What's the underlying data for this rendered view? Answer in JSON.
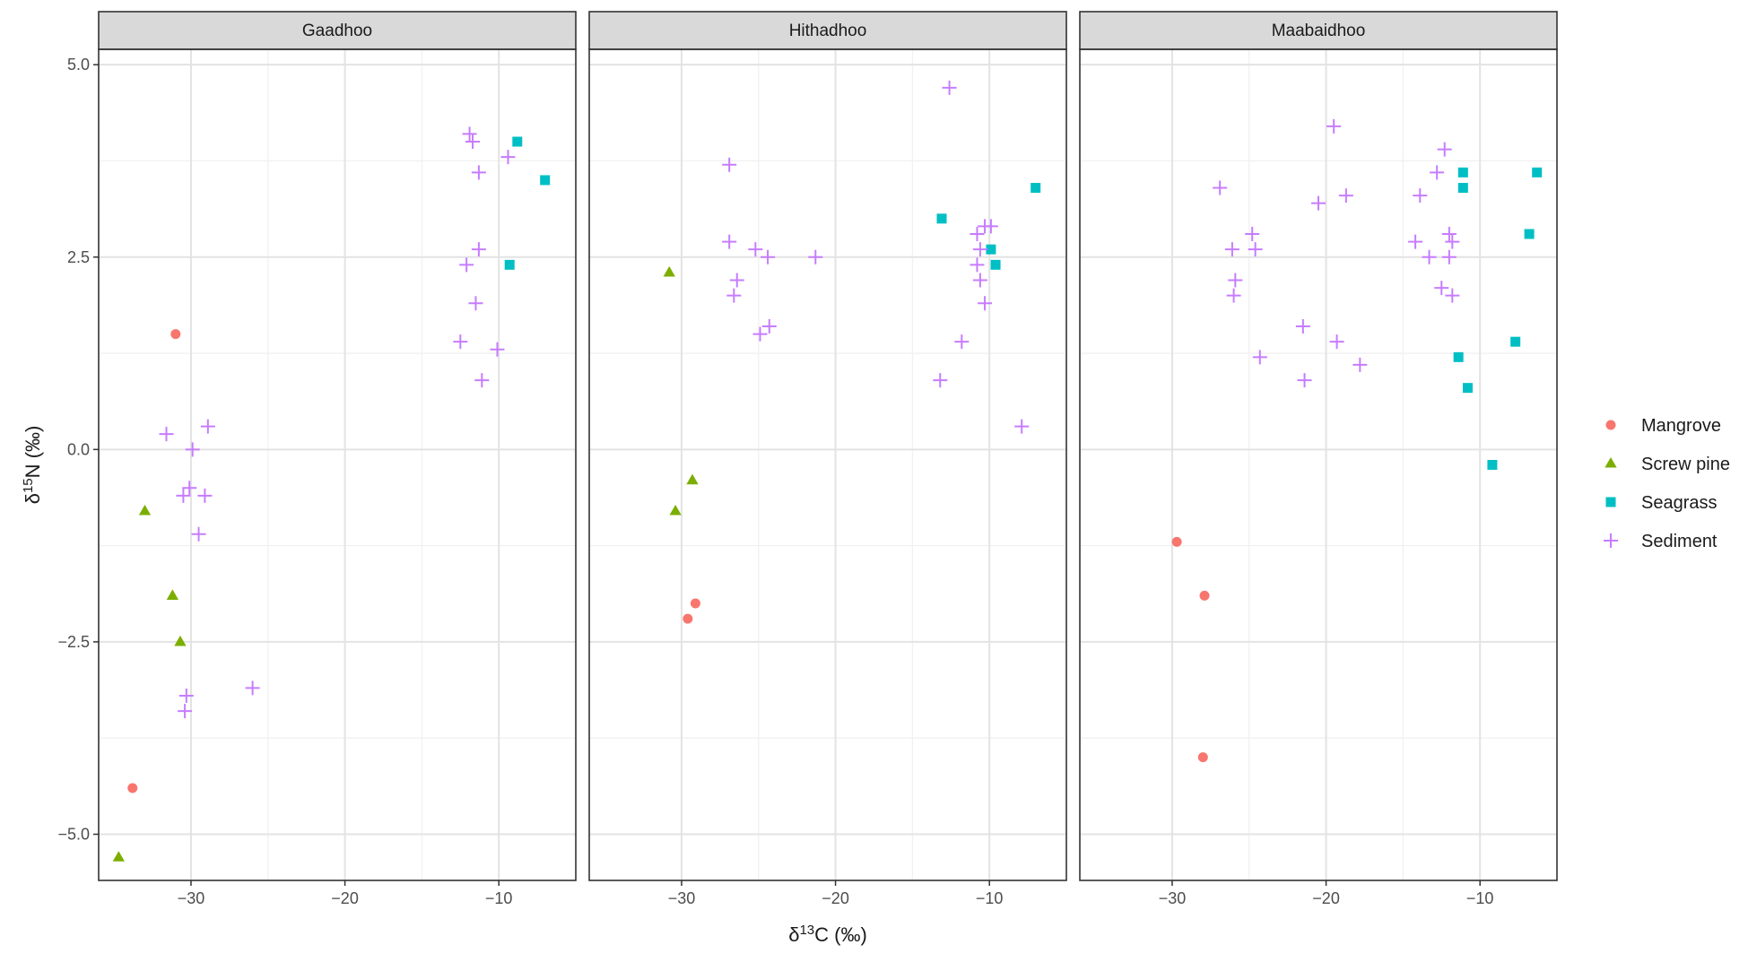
{
  "chart_data": {
    "type": "scatter",
    "facets": [
      "Gaadhoo",
      "Hithadhoo",
      "Maabaidhoo"
    ],
    "xlabel": "δ13C (‰)",
    "ylabel": "δ15N (‰)",
    "xlim": [
      -36,
      -5
    ],
    "ylim": [
      -5.6,
      5.2
    ],
    "x_ticks": [
      -30,
      -20,
      -10
    ],
    "y_ticks": [
      -5.0,
      -2.5,
      0.0,
      2.5,
      5.0
    ],
    "x_tick_labels": [
      "−30",
      "−20",
      "−10"
    ],
    "y_tick_labels": [
      "−5.0",
      "−2.5",
      "0.0",
      "2.5",
      "5.0"
    ],
    "grid": true,
    "legend_position": "right",
    "legend": [
      {
        "name": "Mangrove",
        "color": "#F8766D",
        "shape": "circle"
      },
      {
        "name": "Screw pine",
        "color": "#7CAE00",
        "shape": "triangle"
      },
      {
        "name": "Seagrass",
        "color": "#00BFC4",
        "shape": "square"
      },
      {
        "name": "Sediment",
        "color": "#C77CFF",
        "shape": "plus"
      }
    ],
    "panels": [
      {
        "facet": "Gaadhoo",
        "series": {
          "Mangrove": [
            [
              -31.0,
              1.5
            ],
            [
              -33.8,
              -4.4
            ]
          ],
          "Screw pine": [
            [
              -33.0,
              -0.8
            ],
            [
              -31.2,
              -1.9
            ],
            [
              -30.7,
              -2.5
            ],
            [
              -34.7,
              -5.3
            ]
          ],
          "Seagrass": [
            [
              -8.8,
              4.0
            ],
            [
              -7.0,
              3.5
            ],
            [
              -9.3,
              2.4
            ]
          ],
          "Sediment": [
            [
              -11.9,
              4.1
            ],
            [
              -11.7,
              4.0
            ],
            [
              -11.3,
              3.6
            ],
            [
              -9.4,
              3.8
            ],
            [
              -11.3,
              2.6
            ],
            [
              -12.1,
              2.4
            ],
            [
              -11.5,
              1.9
            ],
            [
              -12.5,
              1.4
            ],
            [
              -10.1,
              1.3
            ],
            [
              -11.1,
              0.9
            ],
            [
              -31.6,
              0.2
            ],
            [
              -28.9,
              0.3
            ],
            [
              -29.9,
              0.0
            ],
            [
              -30.5,
              -0.6
            ],
            [
              -30.1,
              -0.5
            ],
            [
              -29.1,
              -0.6
            ],
            [
              -29.5,
              -1.1
            ],
            [
              -26.0,
              -3.1
            ],
            [
              -30.3,
              -3.2
            ],
            [
              -30.4,
              -3.4
            ]
          ]
        }
      },
      {
        "facet": "Hithadhoo",
        "series": {
          "Mangrove": [
            [
              -29.1,
              -2.0
            ],
            [
              -29.6,
              -2.2
            ]
          ],
          "Screw pine": [
            [
              -30.8,
              2.3
            ],
            [
              -29.3,
              -0.4
            ],
            [
              -30.4,
              -0.8
            ]
          ],
          "Seagrass": [
            [
              -13.1,
              3.0
            ],
            [
              -7.0,
              3.4
            ],
            [
              -9.9,
              2.6
            ],
            [
              -9.6,
              2.4
            ]
          ],
          "Sediment": [
            [
              -12.6,
              4.7
            ],
            [
              -26.9,
              3.7
            ],
            [
              -26.9,
              2.7
            ],
            [
              -25.2,
              2.6
            ],
            [
              -24.4,
              2.5
            ],
            [
              -21.3,
              2.5
            ],
            [
              -26.4,
              2.2
            ],
            [
              -26.6,
              2.0
            ],
            [
              -24.3,
              1.6
            ],
            [
              -24.9,
              1.5
            ],
            [
              -10.8,
              2.8
            ],
            [
              -10.6,
              2.6
            ],
            [
              -10.3,
              2.9
            ],
            [
              -9.9,
              2.9
            ],
            [
              -10.8,
              2.4
            ],
            [
              -10.6,
              2.2
            ],
            [
              -10.3,
              1.9
            ],
            [
              -11.8,
              1.4
            ],
            [
              -13.2,
              0.9
            ],
            [
              -7.9,
              0.3
            ]
          ]
        }
      },
      {
        "facet": "Maabaidhoo",
        "series": {
          "Mangrove": [
            [
              -29.7,
              -1.2
            ],
            [
              -27.9,
              -1.9
            ],
            [
              -28.0,
              -4.0
            ]
          ],
          "Screw pine": [],
          "Seagrass": [
            [
              -11.1,
              3.6
            ],
            [
              -11.1,
              3.4
            ],
            [
              -6.3,
              3.6
            ],
            [
              -6.8,
              2.8
            ],
            [
              -7.7,
              1.4
            ],
            [
              -11.4,
              1.2
            ],
            [
              -10.8,
              0.8
            ],
            [
              -9.2,
              -0.2
            ]
          ],
          "Sediment": [
            [
              -19.5,
              4.2
            ],
            [
              -12.3,
              3.9
            ],
            [
              -12.8,
              3.6
            ],
            [
              -13.9,
              3.3
            ],
            [
              -26.9,
              3.4
            ],
            [
              -20.5,
              3.2
            ],
            [
              -18.7,
              3.3
            ],
            [
              -24.8,
              2.8
            ],
            [
              -14.2,
              2.7
            ],
            [
              -12.0,
              2.8
            ],
            [
              -11.8,
              2.7
            ],
            [
              -26.1,
              2.6
            ],
            [
              -24.6,
              2.6
            ],
            [
              -13.3,
              2.5
            ],
            [
              -12.0,
              2.5
            ],
            [
              -25.9,
              2.2
            ],
            [
              -26.0,
              2.0
            ],
            [
              -12.5,
              2.1
            ],
            [
              -11.8,
              2.0
            ],
            [
              -21.5,
              1.6
            ],
            [
              -19.3,
              1.4
            ],
            [
              -24.3,
              1.2
            ],
            [
              -17.8,
              1.1
            ],
            [
              -21.4,
              0.9
            ]
          ]
        }
      }
    ]
  }
}
